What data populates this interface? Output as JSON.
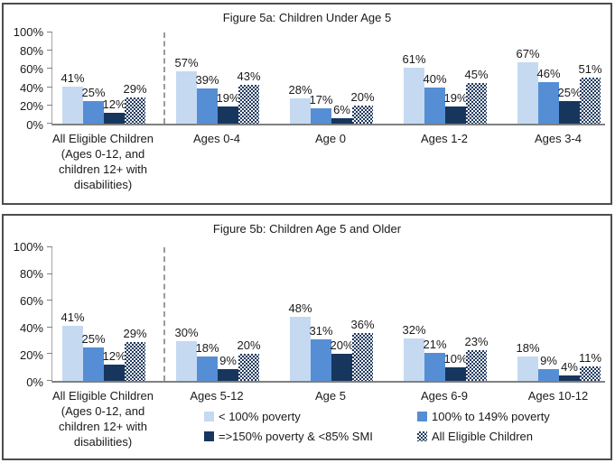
{
  "colors": {
    "series_lt100": "#c5d9f1",
    "series_100to149": "#558ed5",
    "series_150plus": "#17365d",
    "series_all_eligible_pattern": "#1f3a60",
    "axis_line": "#808080",
    "separator_line": "#9b9b9b"
  },
  "y_axis": {
    "ticks": [
      {
        "value": 0,
        "label": "0%"
      },
      {
        "value": 20,
        "label": "20%"
      },
      {
        "value": 40,
        "label": "40%"
      },
      {
        "value": 60,
        "label": "60%"
      },
      {
        "value": 80,
        "label": "80%"
      },
      {
        "value": 100,
        "label": "100%"
      }
    ]
  },
  "legend": {
    "location": "figure-5b-bottom",
    "items": [
      {
        "label": "< 100% poverty",
        "icon": "legend-swatch-lt100-poverty",
        "series": "s1"
      },
      {
        "label": "100% to 149% poverty",
        "icon": "legend-swatch-100to149-poverty",
        "series": "s2"
      },
      {
        "label": "=>150% poverty & <85% SMI",
        "icon": "legend-swatch-150plus-smi",
        "series": "s3"
      },
      {
        "label": "All Eligible Children",
        "icon": "legend-swatch-all-eligible",
        "series": "s4"
      }
    ]
  },
  "chart_data": [
    {
      "type": "bar",
      "title": "Figure 5a: Children Under Age 5",
      "categories": [
        "All Eligible Children (Ages 0-12, and children 12+ with disabilities)",
        "Ages 0-4",
        "Age 0",
        "Ages 1-2",
        "Ages 3-4"
      ],
      "category_display": [
        [
          "All Eligible Children",
          "(Ages 0-12, and",
          "children 12+ with",
          "disabilities)"
        ],
        [
          "Ages 0-4"
        ],
        [
          "Age 0"
        ],
        [
          "Ages 1-2"
        ],
        [
          "Ages 3-4"
        ]
      ],
      "series": [
        {
          "name": "< 100% poverty",
          "values": [
            41,
            57,
            28,
            61,
            67
          ]
        },
        {
          "name": "100% to 149% poverty",
          "values": [
            25,
            39,
            17,
            40,
            46
          ]
        },
        {
          "name": "=>150% poverty & <85% SMI",
          "values": [
            12,
            19,
            6,
            19,
            25
          ]
        },
        {
          "name": "All Eligible Children",
          "values": [
            29,
            43,
            20,
            45,
            51
          ]
        }
      ],
      "ylim": [
        0,
        100
      ],
      "data_label_format": "percent",
      "grid": false,
      "separator_after_first_category": true
    },
    {
      "type": "bar",
      "title": "Figure 5b: Children Age 5 and Older",
      "categories": [
        "All Eligible Children (Ages 0-12, and children 12+ with disabilities)",
        "Ages 5-12",
        "Age 5",
        "Ages 6-9",
        "Ages 10-12"
      ],
      "category_display": [
        [
          "All Eligible Children",
          "(Ages 0-12, and",
          "children 12+ with",
          "disabilities)"
        ],
        [
          "Ages 5-12"
        ],
        [
          "Age 5"
        ],
        [
          "Ages 6-9"
        ],
        [
          "Ages 10-12"
        ]
      ],
      "series": [
        {
          "name": "< 100% poverty",
          "values": [
            41,
            30,
            48,
            32,
            18
          ]
        },
        {
          "name": "100% to 149% poverty",
          "values": [
            25,
            18,
            31,
            21,
            9
          ]
        },
        {
          "name": "=>150% poverty & <85% SMI",
          "values": [
            12,
            9,
            20,
            10,
            4
          ]
        },
        {
          "name": "All Eligible Children",
          "values": [
            29,
            20,
            36,
            23,
            11
          ]
        }
      ],
      "ylim": [
        0,
        100
      ],
      "data_label_format": "percent",
      "grid": false,
      "separator_after_first_category": true
    }
  ]
}
